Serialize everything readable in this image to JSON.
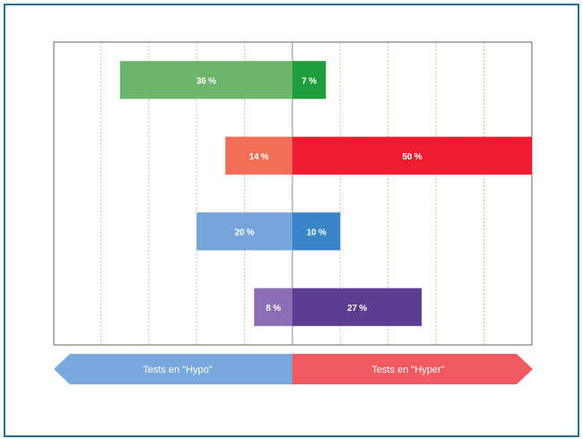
{
  "chart_data": {
    "type": "bar",
    "orientation": "horizontal-diverging",
    "xlim": [
      -50,
      50
    ],
    "grid": true,
    "categories": [
      "",
      "",
      "",
      ""
    ],
    "series": [
      {
        "name": "Tests en \"Hypo\"",
        "values": [
          36,
          14,
          20,
          8
        ],
        "labels": [
          "36 %",
          "14 %",
          "20 %",
          "8 %"
        ]
      },
      {
        "name": "Tests en \"Hyper\"",
        "values": [
          7,
          50,
          10,
          27
        ],
        "labels": [
          "7 %",
          "50 %",
          "10 %",
          "27 %"
        ]
      }
    ],
    "colors": {
      "hypo": [
        "#6db56d",
        "#f26f55",
        "#78a5d9",
        "#8a6db5"
      ],
      "hyper": [
        "#1e9e3c",
        "#ee1c2e",
        "#3a84c8",
        "#5b3d91"
      ]
    },
    "legend": {
      "hypo_label": "Tests en \"Hypo\"",
      "hyper_label": "Tests en \"Hyper\"",
      "hypo_color": "#78a9dc",
      "hyper_color": "#f25a62"
    }
  }
}
